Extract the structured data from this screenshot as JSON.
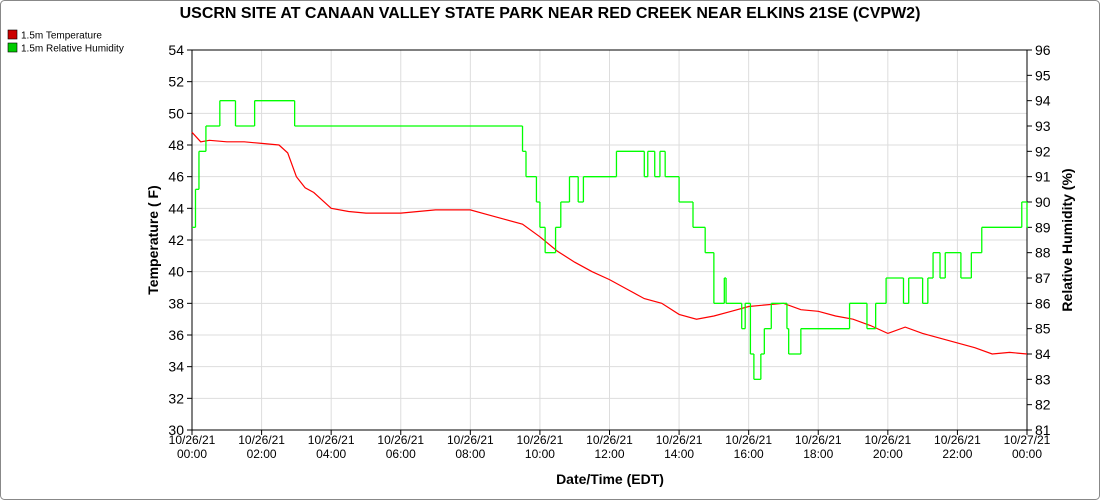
{
  "chart_data": {
    "type": "line",
    "title": "USCRN SITE AT CANAAN VALLEY STATE PARK NEAR RED CREEK NEAR ELKINS 21SE (CVPW2)",
    "xlabel": "Date/Time (EDT)",
    "ylabel": "Temperature ( F)",
    "y2label": "Relative Humidity (%)",
    "xlim": [
      0,
      24
    ],
    "xticks": [
      {
        "value": 0,
        "label": "10/26/21\n00:00"
      },
      {
        "value": 2,
        "label": "10/26/21\n02:00"
      },
      {
        "value": 4,
        "label": "10/26/21\n04:00"
      },
      {
        "value": 6,
        "label": "10/26/21\n06:00"
      },
      {
        "value": 8,
        "label": "10/26/21\n08:00"
      },
      {
        "value": 10,
        "label": "10/26/21\n10:00"
      },
      {
        "value": 12,
        "label": "10/26/21\n12:00"
      },
      {
        "value": 14,
        "label": "10/26/21\n14:00"
      },
      {
        "value": 16,
        "label": "10/26/21\n16:00"
      },
      {
        "value": 18,
        "label": "10/26/21\n18:00"
      },
      {
        "value": 20,
        "label": "10/26/21\n20:00"
      },
      {
        "value": 22,
        "label": "10/26/21\n22:00"
      },
      {
        "value": 24,
        "label": "10/27/21\n00:00"
      }
    ],
    "ylim": [
      30,
      54
    ],
    "yticks": [
      30,
      32,
      34,
      36,
      38,
      40,
      42,
      44,
      46,
      48,
      50,
      52,
      54
    ],
    "y2lim": [
      81,
      96
    ],
    "y2ticks": [
      81,
      82,
      83,
      84,
      85,
      86,
      87,
      88,
      89,
      90,
      91,
      92,
      93,
      94,
      95,
      96
    ],
    "grid": true,
    "series": [
      {
        "name": "1.5m Temperature",
        "color": "#ff0000",
        "legend_color": "#cc0000",
        "step": false,
        "x": [
          0,
          0.25,
          0.5,
          1,
          1.5,
          2,
          2.5,
          2.75,
          3,
          3.25,
          3.5,
          3.75,
          4,
          4.5,
          5,
          5.5,
          6,
          6.5,
          7,
          7.5,
          8,
          8.5,
          9,
          9.5,
          10,
          10.5,
          11,
          11.5,
          12,
          12.5,
          13,
          13.5,
          14,
          14.5,
          15,
          15.5,
          16,
          16.5,
          17,
          17.5,
          18,
          18.5,
          19,
          19.5,
          20,
          20.5,
          21,
          21.5,
          22,
          22.5,
          23,
          23.5,
          24
        ],
        "values": [
          48.8,
          48.2,
          48.3,
          48.2,
          48.2,
          48.1,
          48.0,
          47.5,
          46.0,
          45.3,
          45.0,
          44.5,
          44.0,
          43.8,
          43.7,
          43.7,
          43.7,
          43.8,
          43.9,
          43.9,
          43.9,
          43.6,
          43.3,
          43.0,
          42.2,
          41.3,
          40.6,
          40.0,
          39.5,
          38.9,
          38.3,
          38.0,
          37.3,
          37.0,
          37.2,
          37.5,
          37.8,
          37.9,
          38.0,
          37.6,
          37.5,
          37.2,
          37.0,
          36.6,
          36.1,
          36.5,
          36.1,
          35.8,
          35.5,
          35.2,
          34.8,
          34.9,
          34.8
        ]
      },
      {
        "name": "1.5m Relative Humidity",
        "color": "#00ff00",
        "legend_color": "#00cc00",
        "axis": "y2",
        "step": true,
        "x": [
          0,
          0.1,
          0.2,
          0.4,
          0.8,
          1.25,
          1.8,
          2.95,
          9.5,
          9.6,
          9.9,
          10.0,
          10.15,
          10.45,
          10.6,
          10.85,
          11.1,
          11.25,
          12.2,
          13.0,
          13.1,
          13.3,
          13.45,
          13.6,
          14.0,
          14.4,
          14.75,
          15.0,
          15.3,
          15.35,
          15.8,
          15.9,
          16.05,
          16.15,
          16.35,
          16.45,
          16.65,
          17.1,
          17.15,
          17.5,
          18.9,
          19.4,
          19.65,
          19.95,
          20.45,
          20.6,
          21.0,
          21.15,
          21.3,
          21.5,
          21.65,
          22.1,
          22.4,
          22.7,
          23.85,
          24
        ],
        "values": [
          89,
          90.5,
          92,
          93,
          94,
          93,
          94,
          93,
          92,
          91,
          90,
          89,
          88,
          89,
          90,
          91,
          90,
          91,
          92,
          91,
          92,
          91,
          92,
          91,
          90,
          89,
          88,
          86,
          87,
          86,
          85,
          86,
          84,
          83,
          84,
          85,
          86,
          85,
          84,
          85,
          86,
          85,
          86,
          87,
          86,
          87,
          86,
          87,
          88,
          87,
          88,
          87,
          88,
          89,
          90,
          89
        ]
      }
    ]
  }
}
